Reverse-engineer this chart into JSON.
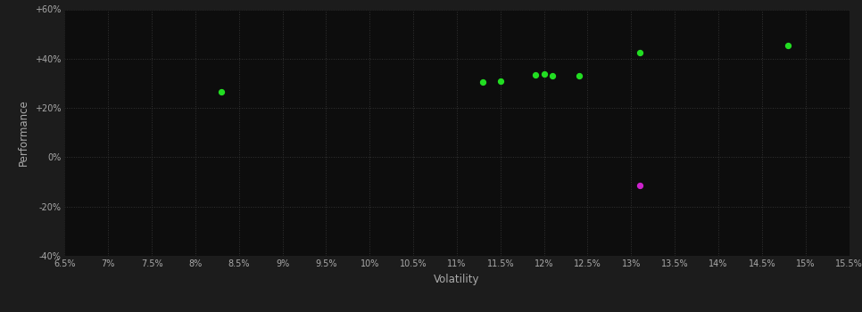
{
  "background_color": "#1c1c1c",
  "plot_bg_color": "#0d0d0d",
  "grid_color": "#333333",
  "text_color": "#aaaaaa",
  "xlabel": "Volatility",
  "ylabel": "Performance",
  "xlim": [
    0.065,
    0.155
  ],
  "ylim": [
    -0.4,
    0.6
  ],
  "xticks": [
    0.065,
    0.07,
    0.075,
    0.08,
    0.085,
    0.09,
    0.095,
    0.1,
    0.105,
    0.11,
    0.115,
    0.12,
    0.125,
    0.13,
    0.135,
    0.14,
    0.145,
    0.15,
    0.155
  ],
  "yticks": [
    -0.4,
    -0.2,
    0.0,
    0.2,
    0.4,
    0.6
  ],
  "ytick_labels": [
    "-40%",
    "-20%",
    "0%",
    "+20%",
    "+40%",
    "+60%"
  ],
  "xtick_labels": [
    "6.5%",
    "7%",
    "7.5%",
    "8%",
    "8.5%",
    "9%",
    "9.5%",
    "10%",
    "10.5%",
    "11%",
    "11.5%",
    "12%",
    "12.5%",
    "13%",
    "13.5%",
    "14%",
    "14.5%",
    "15%",
    "15.5%"
  ],
  "green_points": [
    [
      0.083,
      0.265
    ],
    [
      0.113,
      0.305
    ],
    [
      0.115,
      0.31
    ],
    [
      0.119,
      0.335
    ],
    [
      0.12,
      0.338
    ],
    [
      0.121,
      0.33
    ],
    [
      0.124,
      0.33
    ],
    [
      0.131,
      0.425
    ],
    [
      0.148,
      0.455
    ]
  ],
  "magenta_points": [
    [
      0.131,
      -0.115
    ]
  ],
  "dot_size": 18,
  "green_color": "#22dd22",
  "magenta_color": "#cc22cc"
}
